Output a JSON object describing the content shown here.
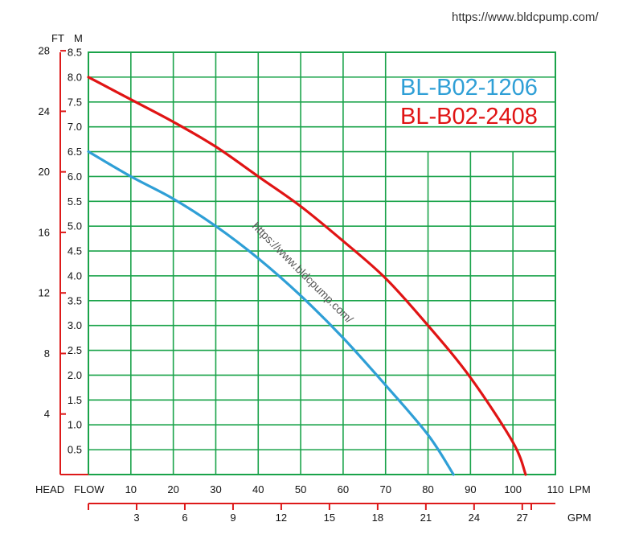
{
  "watermark_top": "https://www.bldcpump.com/",
  "watermark_diag": "https://www.bldcpump.com/",
  "colors": {
    "grid": "#1aa34a",
    "axis": "#dd1a1a",
    "blue": "#2f9fd6",
    "red": "#e01414"
  },
  "chart_data": {
    "type": "line",
    "legend_placement": "top-right",
    "grid": true,
    "x_primary": {
      "unit": "LPM",
      "label": "FLOW",
      "range": [
        0,
        110
      ],
      "ticks": [
        10,
        20,
        30,
        40,
        50,
        60,
        70,
        80,
        90,
        100,
        110
      ]
    },
    "x_secondary": {
      "unit": "GPM",
      "range": [
        0,
        29.06
      ],
      "ticks": [
        3,
        6,
        9,
        12,
        15,
        18,
        21,
        24,
        27
      ]
    },
    "y_primary": {
      "unit": "M",
      "label": "HEAD",
      "range": [
        0,
        8.5
      ],
      "ticks": [
        "0.5",
        "1.0",
        "1.5",
        "2.0",
        "2.5",
        "3.0",
        "3.5",
        "4.0",
        "4.5",
        "5.0",
        "5.5",
        "6.0",
        "6.5",
        "7.0",
        "7.5",
        "8.0",
        "8.5"
      ]
    },
    "y_secondary": {
      "unit": "FT",
      "range": [
        0,
        27.9
      ],
      "ticks": [
        4,
        8,
        12,
        16,
        20,
        24,
        28
      ]
    },
    "series": [
      {
        "name": "BL-B02-1206",
        "color": "#2f9fd6",
        "x": [
          0,
          10,
          20,
          30,
          40,
          50,
          60,
          70,
          80,
          86
        ],
        "y": [
          6.5,
          6.0,
          5.55,
          5.0,
          4.35,
          3.6,
          2.75,
          1.8,
          0.8,
          0.0
        ]
      },
      {
        "name": "BL-B02-2408",
        "color": "#e01414",
        "x": [
          0,
          10,
          20,
          30,
          40,
          50,
          60,
          70,
          80,
          90,
          100,
          103
        ],
        "y": [
          8.0,
          7.55,
          7.1,
          6.6,
          6.0,
          5.4,
          4.7,
          3.95,
          3.0,
          1.95,
          0.65,
          0.0
        ]
      }
    ]
  }
}
